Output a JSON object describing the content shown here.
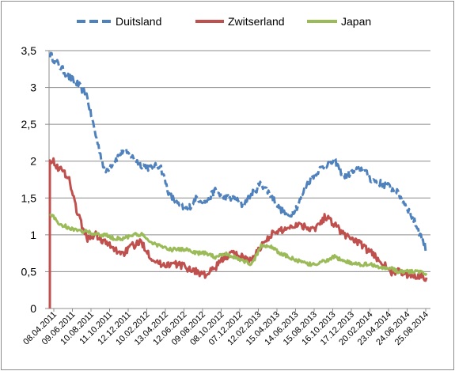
{
  "chart_data": {
    "type": "line",
    "title": "",
    "xlabel": "",
    "ylabel": "",
    "ylim": [
      0,
      3.5
    ],
    "yticks": [
      "0",
      "0,5",
      "1",
      "1,5",
      "2",
      "2,5",
      "3",
      "3,5"
    ],
    "xticks": [
      "08.04.2011",
      "09.06.2011",
      "10.08.2011",
      "11.10.2011",
      "12.12.2011",
      "10.02.2012",
      "13.04.2012",
      "12.06.2012",
      "09.08.2012",
      "08.10.2012",
      "07.12.2012",
      "12.02.2013",
      "15.04.2013",
      "14.06.2013",
      "15.08.2013",
      "16.10.2013",
      "17.12.2013",
      "20.02.2014",
      "23.04.2014",
      "24.06.2014",
      "25.08.2014"
    ],
    "grid": "horizontal",
    "legend_position": "top",
    "colors": {
      "Duitsland": "#4f81bd",
      "Zwitserland": "#c0504d",
      "Japan": "#9bbb59"
    },
    "series": [
      {
        "name": "Duitsland",
        "style": "dashed",
        "values": [
          3.45,
          3.3,
          3.15,
          3.05,
          2.9,
          2.35,
          1.85,
          2.0,
          2.15,
          2.05,
          1.95,
          1.9,
          1.95,
          1.55,
          1.4,
          1.35,
          1.5,
          1.45,
          1.6,
          1.5,
          1.5,
          1.4,
          1.55,
          1.7,
          1.55,
          1.35,
          1.25,
          1.4,
          1.7,
          1.85,
          1.95,
          2.0,
          1.8,
          1.85,
          1.9,
          1.75,
          1.7,
          1.65,
          1.55,
          1.35,
          1.1,
          0.8
        ]
      },
      {
        "name": "Zwitserland",
        "style": "solid",
        "values": [
          2.05,
          1.9,
          1.8,
          1.3,
          0.95,
          1.0,
          0.9,
          0.8,
          0.75,
          0.85,
          0.9,
          0.7,
          0.6,
          0.6,
          0.6,
          0.55,
          0.5,
          0.45,
          0.55,
          0.7,
          0.75,
          0.7,
          0.65,
          0.85,
          1.0,
          1.05,
          1.1,
          1.15,
          1.1,
          1.1,
          1.25,
          1.15,
          1.0,
          0.95,
          0.85,
          0.75,
          0.65,
          0.5,
          0.5,
          0.45,
          0.45,
          0.42
        ]
      },
      {
        "name": "Japan",
        "style": "solid",
        "values": [
          1.3,
          1.15,
          1.1,
          1.05,
          1.05,
          1.0,
          1.0,
          0.95,
          0.95,
          1.0,
          1.0,
          0.9,
          0.85,
          0.8,
          0.8,
          0.8,
          0.75,
          0.75,
          0.7,
          0.75,
          0.7,
          0.65,
          0.6,
          0.85,
          0.85,
          0.75,
          0.7,
          0.65,
          0.6,
          0.6,
          0.65,
          0.7,
          0.65,
          0.6,
          0.6,
          0.6,
          0.55,
          0.55,
          0.5,
          0.5,
          0.5,
          0.48
        ]
      }
    ]
  }
}
